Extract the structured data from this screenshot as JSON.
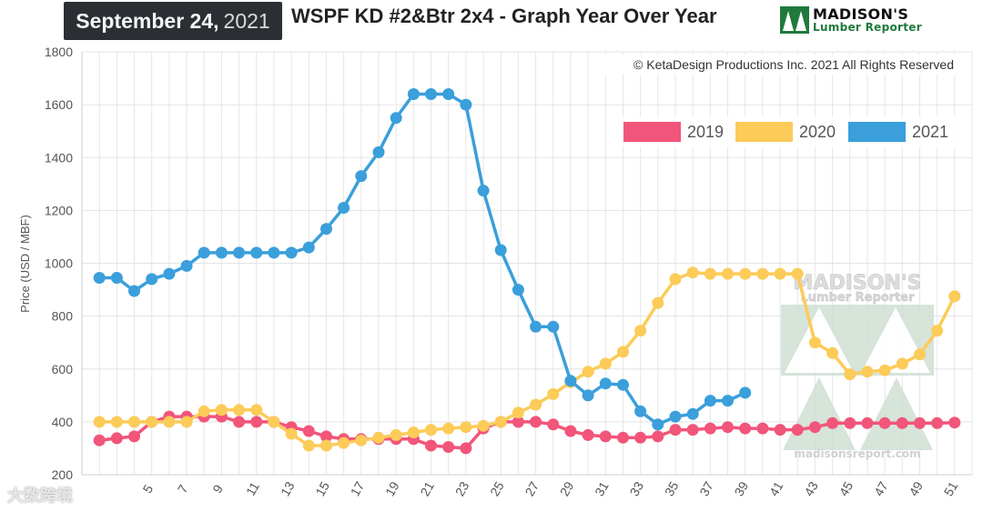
{
  "header": {
    "date_month_day": "September 24,",
    "date_year": "2021",
    "title": "WSPF KD #2&Btr 2x4 - Graph Year Over Year",
    "logo_name": "MADISON'S",
    "logo_sub": "Lumber Reporter"
  },
  "copyright": "© KetaDesign Productions Inc. 2021 All Rights Reserved",
  "watermark": {
    "name": "MADISON'S",
    "sub": "Lumber Reporter",
    "url": "madisonsreport.com"
  },
  "corner_watermark": "大数跨境",
  "colors": {
    "2019": "#f2557a",
    "2020": "#fccb58",
    "2021": "#3a9fdb"
  },
  "chart_data": {
    "type": "line",
    "title": "WSPF KD #2&Btr 2x4 - Graph Year Over Year",
    "xlabel": "",
    "ylabel": "Price (USD / MBF)",
    "ylim": [
      200,
      1800
    ],
    "yticks": [
      200,
      400,
      600,
      800,
      1000,
      1200,
      1400,
      1600,
      1800
    ],
    "xlim": [
      1,
      52
    ],
    "xtick_labels": [
      "5",
      "7",
      "9",
      "11",
      "13",
      "15",
      "17",
      "19",
      "21",
      "23",
      "25",
      "27",
      "29",
      "31",
      "33",
      "35",
      "37",
      "39",
      "41",
      "43",
      "45",
      "47",
      "49",
      "51"
    ],
    "legend_position": "top-right",
    "series": [
      {
        "name": "2019",
        "x": [
          2,
          3,
          4,
          5,
          6,
          7,
          8,
          9,
          10,
          11,
          12,
          13,
          14,
          15,
          16,
          17,
          18,
          19,
          20,
          21,
          22,
          23,
          24,
          25,
          26,
          27,
          28,
          29,
          30,
          31,
          32,
          33,
          34,
          35,
          36,
          37,
          38,
          39,
          40,
          41,
          42,
          43,
          44,
          45,
          46,
          47,
          48,
          49,
          50,
          51
        ],
        "values": [
          330,
          338,
          345,
          400,
          420,
          420,
          420,
          420,
          400,
          400,
          400,
          380,
          365,
          345,
          335,
          335,
          335,
          335,
          335,
          310,
          305,
          300,
          375,
          400,
          400,
          400,
          390,
          365,
          350,
          345,
          340,
          340,
          345,
          370,
          370,
          375,
          380,
          375,
          375,
          370,
          370,
          380,
          395,
          395,
          395,
          395,
          395,
          395,
          395,
          397
        ]
      },
      {
        "name": "2020",
        "x": [
          2,
          3,
          4,
          5,
          6,
          7,
          8,
          9,
          10,
          11,
          12,
          13,
          14,
          15,
          16,
          17,
          18,
          19,
          20,
          21,
          22,
          23,
          24,
          25,
          26,
          27,
          28,
          29,
          30,
          31,
          32,
          33,
          34,
          35,
          36,
          37,
          38,
          39,
          40,
          41,
          42,
          43,
          44,
          45,
          46,
          47,
          48,
          49,
          50,
          51
        ],
        "values": [
          400,
          400,
          400,
          400,
          400,
          400,
          440,
          445,
          445,
          445,
          400,
          355,
          310,
          310,
          320,
          330,
          340,
          350,
          360,
          370,
          375,
          380,
          385,
          400,
          435,
          465,
          505,
          550,
          590,
          620,
          665,
          745,
          850,
          940,
          965,
          960,
          960,
          960,
          960,
          960,
          960,
          700,
          660,
          580,
          590,
          595,
          620,
          655,
          745,
          875
        ]
      },
      {
        "name": "2021",
        "x": [
          2,
          3,
          4,
          5,
          6,
          7,
          8,
          9,
          10,
          11,
          12,
          13,
          14,
          15,
          16,
          17,
          18,
          19,
          20,
          21,
          22,
          23,
          24,
          25,
          26,
          27,
          28,
          29,
          30,
          31,
          32,
          33,
          34,
          35,
          36,
          37,
          38,
          39
        ],
        "values": [
          945,
          945,
          895,
          940,
          960,
          990,
          1040,
          1040,
          1040,
          1040,
          1040,
          1040,
          1060,
          1130,
          1210,
          1330,
          1420,
          1550,
          1640,
          1640,
          1640,
          1600,
          1275,
          1050,
          900,
          760,
          760,
          555,
          500,
          545,
          540,
          440,
          390,
          420,
          430,
          480,
          480,
          510
        ]
      }
    ]
  }
}
